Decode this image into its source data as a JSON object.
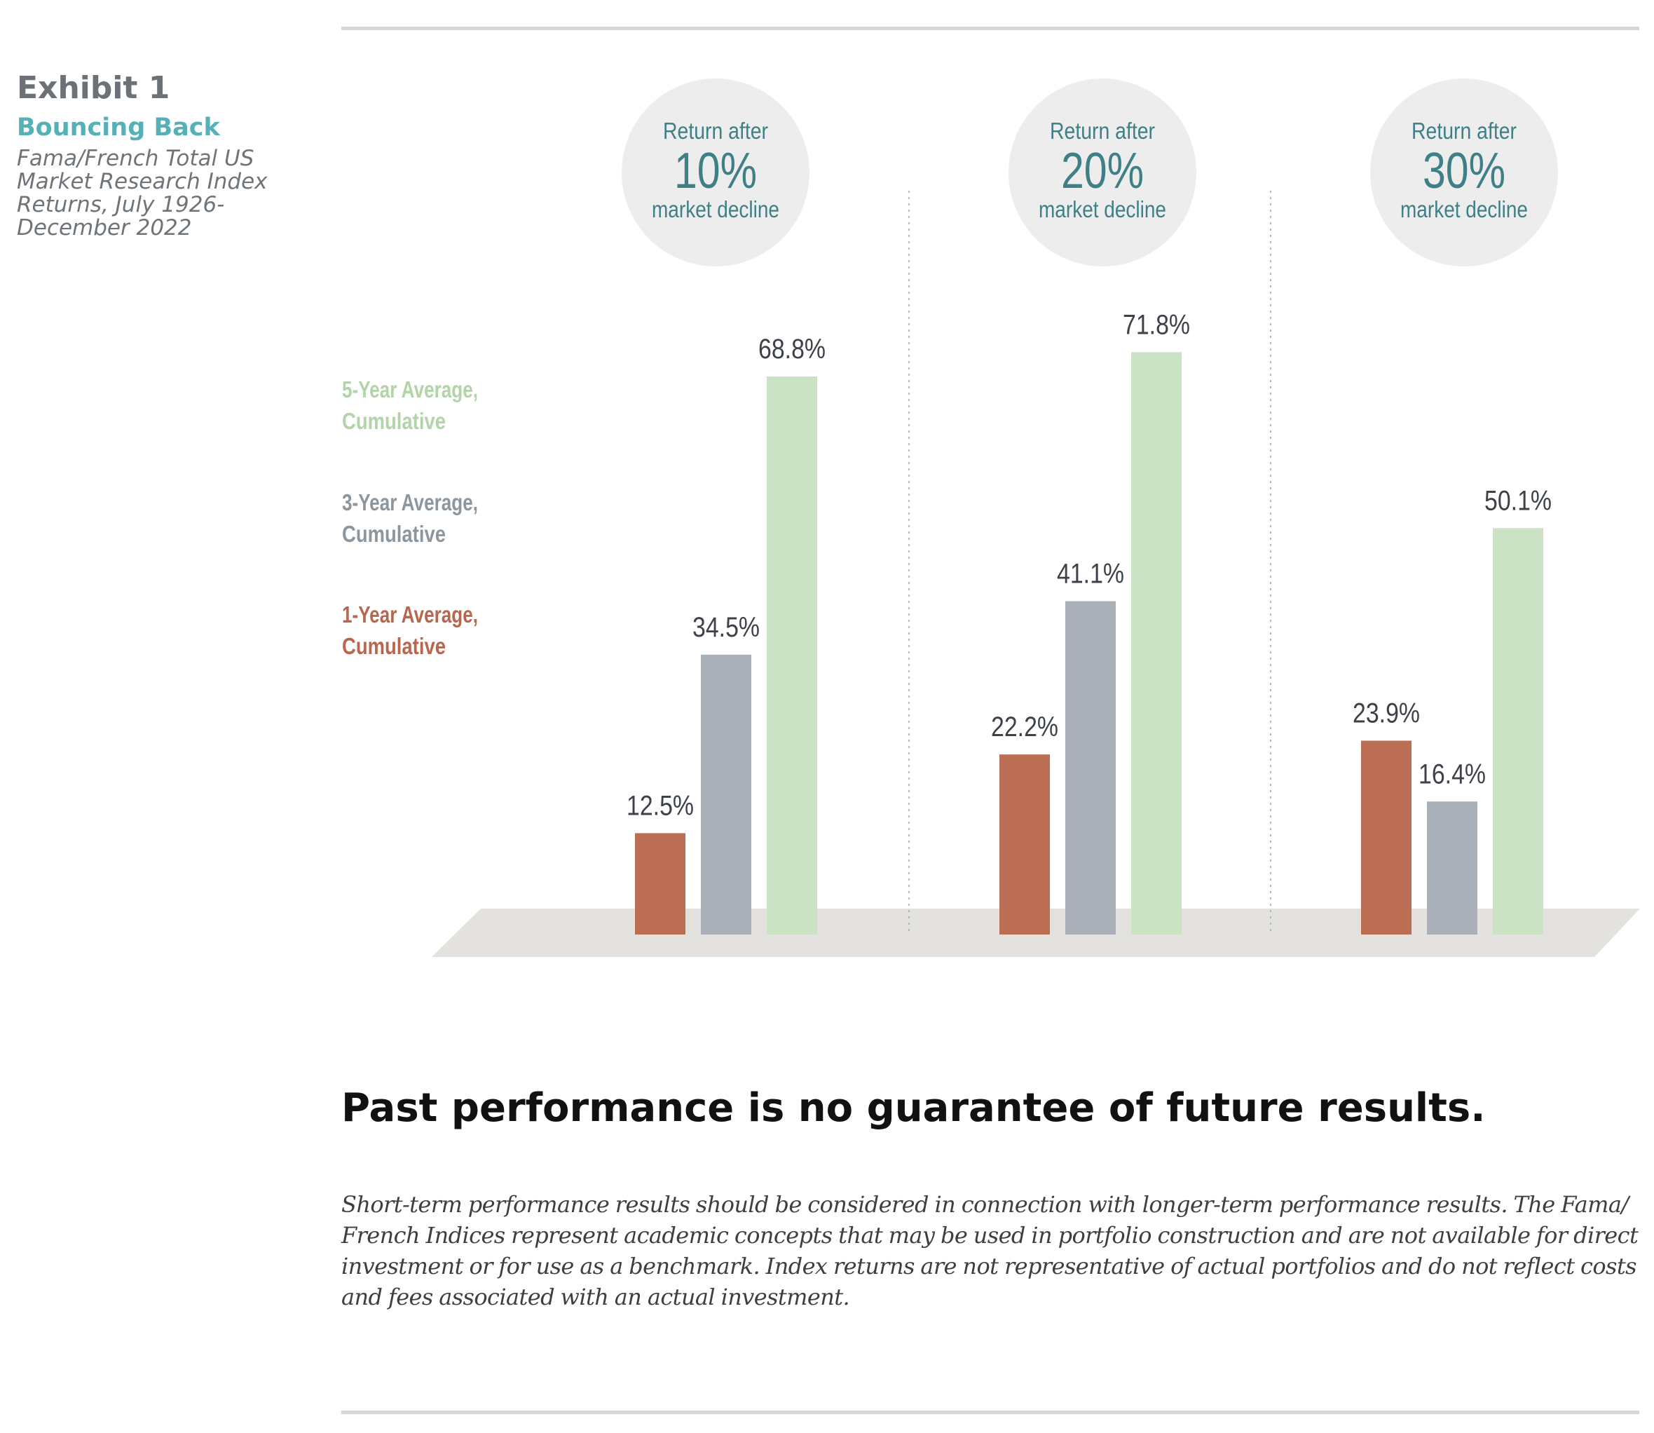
{
  "exhibit": {
    "label": "Exhibit 1",
    "title": "Bouncing Back",
    "source": "Fama/French Total US Market Research Index Returns, July 1926-December 2022"
  },
  "chart_data": {
    "type": "bar",
    "categories": [
      {
        "top": "Return after",
        "value": "10%",
        "bottom": "market decline"
      },
      {
        "top": "Return after",
        "value": "20%",
        "bottom": "market decline"
      },
      {
        "top": "Return after",
        "value": "30%",
        "bottom": "market decline"
      }
    ],
    "series": [
      {
        "name": "1-Year Average, Cumulative",
        "name_lines": [
          "1-Year Average,",
          "Cumulative"
        ],
        "color": "#bc6e55",
        "values": [
          12.5,
          22.2,
          23.9
        ]
      },
      {
        "name": "3-Year Average, Cumulative",
        "name_lines": [
          "3-Year Average,",
          "Cumulative"
        ],
        "color": "#a9b0b7",
        "values": [
          34.5,
          41.1,
          16.4
        ]
      },
      {
        "name": "5-Year Average, Cumulative",
        "name_lines": [
          "5-Year Average,",
          "Cumulative"
        ],
        "color": "#cbe2c5",
        "values": [
          68.8,
          71.8,
          50.1
        ]
      }
    ],
    "value_suffix": "%",
    "ylim": [
      0,
      80
    ],
    "legend_position": "left",
    "grid": false,
    "colors": {
      "category_text": "#3f7f86",
      "category_circle": "#eeeded",
      "floor": "#e3e2df",
      "value_label": "#3d4148",
      "divider": "#b8b8b8"
    }
  },
  "footer": {
    "headline": "Past performance is no guarantee of future results.",
    "disclaimer": "Short-term performance results should be considered in connection with longer-term performance results. The Fama/ French Indices represent academic concepts that may be used in portfolio construction and are not available for direct investment or for use as a benchmark. Index returns are not representative of actual portfolios and do not reflect costs and fees associated with an actual investment."
  }
}
